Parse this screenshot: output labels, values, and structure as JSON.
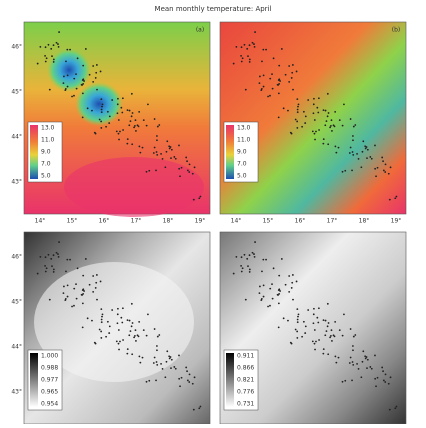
{
  "title": "Mean monthly temperature: April",
  "panels": [
    {
      "label": "(a)",
      "legend": [
        "13.0",
        "11.0",
        "9.0",
        "7.0",
        "5.0"
      ]
    },
    {
      "label": "(b)",
      "legend": [
        "13.0",
        "11.0",
        "9.0",
        "7.0",
        "5.0"
      ]
    },
    {
      "legend": [
        "1.000",
        "0.988",
        "0.977",
        "0.965",
        "0.954"
      ]
    },
    {
      "legend": [
        "0.911",
        "0.866",
        "0.821",
        "0.776",
        "0.731"
      ]
    }
  ],
  "x_ticks": [
    "14°",
    "15°",
    "16°",
    "17°",
    "18°",
    "19°"
  ],
  "y_ticks": [
    "46°",
    "45°",
    "44°",
    "43°"
  ]
}
